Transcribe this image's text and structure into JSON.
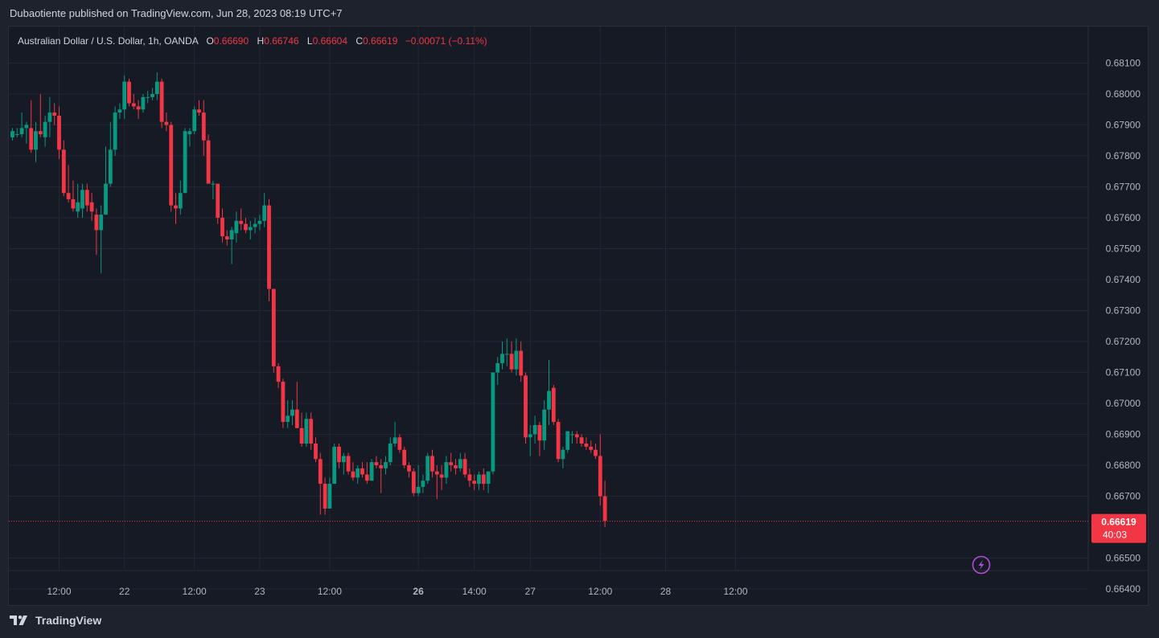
{
  "header": {
    "text": "Dubaotiente published on TradingView.com, Jun 28, 2023 08:19 UTC+7"
  },
  "legend": {
    "title": "Australian Dollar / U.S. Dollar, 1h, OANDA",
    "o_key": "O",
    "o_val": "0.66690",
    "h_key": "H",
    "h_val": "0.66746",
    "l_key": "L",
    "l_val": "0.66604",
    "c_key": "C",
    "c_val": "0.66619",
    "change": "−0.00071 (−0.11%)"
  },
  "footer": {
    "brand": "TradingView",
    "logo_icon": "tradingview-logo-icon"
  },
  "colors": {
    "up": "#089981",
    "down": "#f23645",
    "grid": "#232733",
    "text": "#b2b5be",
    "pane": "#161a25"
  },
  "chart_data": {
    "type": "candlestick",
    "symbol": "AUDUSD",
    "interval": "1h",
    "ylim": [
      0.6638,
      0.6815
    ],
    "y_ticks": [
      {
        "value": 0.681,
        "label": "0.68100"
      },
      {
        "value": 0.68,
        "label": "0.68000"
      },
      {
        "value": 0.679,
        "label": "0.67900"
      },
      {
        "value": 0.678,
        "label": "0.67800"
      },
      {
        "value": 0.677,
        "label": "0.67700"
      },
      {
        "value": 0.676,
        "label": "0.67600"
      },
      {
        "value": 0.675,
        "label": "0.67500"
      },
      {
        "value": 0.674,
        "label": "0.67400"
      },
      {
        "value": 0.673,
        "label": "0.67300"
      },
      {
        "value": 0.672,
        "label": "0.67200"
      },
      {
        "value": 0.671,
        "label": "0.67100"
      },
      {
        "value": 0.67,
        "label": "0.67000"
      },
      {
        "value": 0.669,
        "label": "0.66900"
      },
      {
        "value": 0.668,
        "label": "0.66800"
      },
      {
        "value": 0.667,
        "label": "0.66700"
      },
      {
        "value": 0.665,
        "label": "0.66500"
      },
      {
        "value": 0.664,
        "label": "0.66400"
      }
    ],
    "x_ticks": [
      {
        "index": 10,
        "label": "12:00",
        "bold": false
      },
      {
        "index": 24,
        "label": "22",
        "bold": false
      },
      {
        "index": 39,
        "label": "12:00",
        "bold": false
      },
      {
        "index": 53,
        "label": "23",
        "bold": false
      },
      {
        "index": 68,
        "label": "12:00",
        "bold": false
      },
      {
        "index": 87,
        "label": "26",
        "bold": true
      },
      {
        "index": 99,
        "label": "14:00",
        "bold": false
      },
      {
        "index": 111,
        "label": "27",
        "bold": false
      },
      {
        "index": 126,
        "label": "12:00",
        "bold": false
      },
      {
        "index": 140,
        "label": "28",
        "bold": false
      },
      {
        "index": 155,
        "label": "12:00",
        "bold": false
      }
    ],
    "last_price": {
      "value": 0.66619,
      "label": "0.66619",
      "countdown": "40:03"
    },
    "candles": [
      {
        "o": 0.6786,
        "h": 0.6789,
        "l": 0.6785,
        "c": 0.6788
      },
      {
        "o": 0.6787,
        "h": 0.6789,
        "l": 0.6786,
        "c": 0.6787
      },
      {
        "o": 0.6787,
        "h": 0.6794,
        "l": 0.6786,
        "c": 0.6789
      },
      {
        "o": 0.6789,
        "h": 0.6791,
        "l": 0.6784,
        "c": 0.679
      },
      {
        "o": 0.6789,
        "h": 0.6798,
        "l": 0.6781,
        "c": 0.6782
      },
      {
        "o": 0.6782,
        "h": 0.6791,
        "l": 0.6778,
        "c": 0.6788
      },
      {
        "o": 0.6788,
        "h": 0.68,
        "l": 0.6786,
        "c": 0.6787
      },
      {
        "o": 0.6786,
        "h": 0.6793,
        "l": 0.6783,
        "c": 0.6791
      },
      {
        "o": 0.6791,
        "h": 0.6799,
        "l": 0.6786,
        "c": 0.6794
      },
      {
        "o": 0.6794,
        "h": 0.6797,
        "l": 0.679,
        "c": 0.6793
      },
      {
        "o": 0.6793,
        "h": 0.6796,
        "l": 0.6779,
        "c": 0.6782
      },
      {
        "o": 0.6782,
        "h": 0.6785,
        "l": 0.6767,
        "c": 0.6768
      },
      {
        "o": 0.6768,
        "h": 0.6777,
        "l": 0.6765,
        "c": 0.6766
      },
      {
        "o": 0.6766,
        "h": 0.6772,
        "l": 0.6762,
        "c": 0.6763
      },
      {
        "o": 0.6762,
        "h": 0.6771,
        "l": 0.676,
        "c": 0.6765
      },
      {
        "o": 0.6763,
        "h": 0.6771,
        "l": 0.676,
        "c": 0.6769
      },
      {
        "o": 0.6769,
        "h": 0.6771,
        "l": 0.6762,
        "c": 0.6764
      },
      {
        "o": 0.6765,
        "h": 0.6768,
        "l": 0.6759,
        "c": 0.6762
      },
      {
        "o": 0.6761,
        "h": 0.6763,
        "l": 0.6748,
        "c": 0.6756
      },
      {
        "o": 0.6756,
        "h": 0.6764,
        "l": 0.6742,
        "c": 0.6761
      },
      {
        "o": 0.6761,
        "h": 0.6783,
        "l": 0.6761,
        "c": 0.6771
      },
      {
        "o": 0.6771,
        "h": 0.6791,
        "l": 0.677,
        "c": 0.6782
      },
      {
        "o": 0.6782,
        "h": 0.6796,
        "l": 0.678,
        "c": 0.6794
      },
      {
        "o": 0.6794,
        "h": 0.6797,
        "l": 0.6792,
        "c": 0.6795
      },
      {
        "o": 0.6795,
        "h": 0.6806,
        "l": 0.6792,
        "c": 0.6804
      },
      {
        "o": 0.6804,
        "h": 0.6805,
        "l": 0.6796,
        "c": 0.6797
      },
      {
        "o": 0.6797,
        "h": 0.68,
        "l": 0.6795,
        "c": 0.6796
      },
      {
        "o": 0.6796,
        "h": 0.6798,
        "l": 0.6792,
        "c": 0.6795
      },
      {
        "o": 0.6795,
        "h": 0.68,
        "l": 0.6794,
        "c": 0.6799
      },
      {
        "o": 0.6799,
        "h": 0.6801,
        "l": 0.6797,
        "c": 0.6799
      },
      {
        "o": 0.6799,
        "h": 0.6802,
        "l": 0.6798,
        "c": 0.68
      },
      {
        "o": 0.68,
        "h": 0.6807,
        "l": 0.6798,
        "c": 0.6804
      },
      {
        "o": 0.6804,
        "h": 0.6805,
        "l": 0.6789,
        "c": 0.6791
      },
      {
        "o": 0.6791,
        "h": 0.6794,
        "l": 0.6788,
        "c": 0.679
      },
      {
        "o": 0.679,
        "h": 0.6791,
        "l": 0.6762,
        "c": 0.6764
      },
      {
        "o": 0.6764,
        "h": 0.6768,
        "l": 0.6758,
        "c": 0.6763
      },
      {
        "o": 0.6763,
        "h": 0.6772,
        "l": 0.6761,
        "c": 0.6768
      },
      {
        "o": 0.6768,
        "h": 0.6789,
        "l": 0.6768,
        "c": 0.6788
      },
      {
        "o": 0.6787,
        "h": 0.6789,
        "l": 0.6783,
        "c": 0.6788
      },
      {
        "o": 0.6788,
        "h": 0.6796,
        "l": 0.6787,
        "c": 0.6795
      },
      {
        "o": 0.6795,
        "h": 0.6798,
        "l": 0.6793,
        "c": 0.6794
      },
      {
        "o": 0.6794,
        "h": 0.6798,
        "l": 0.678,
        "c": 0.6785
      },
      {
        "o": 0.6785,
        "h": 0.6787,
        "l": 0.6771,
        "c": 0.6771
      },
      {
        "o": 0.6771,
        "h": 0.6772,
        "l": 0.6766,
        "c": 0.6771
      },
      {
        "o": 0.6771,
        "h": 0.6771,
        "l": 0.6758,
        "c": 0.676
      },
      {
        "o": 0.676,
        "h": 0.6763,
        "l": 0.6752,
        "c": 0.6754
      },
      {
        "o": 0.6754,
        "h": 0.6756,
        "l": 0.6751,
        "c": 0.6753
      },
      {
        "o": 0.6753,
        "h": 0.6757,
        "l": 0.6745,
        "c": 0.6756
      },
      {
        "o": 0.6755,
        "h": 0.6762,
        "l": 0.6752,
        "c": 0.6759
      },
      {
        "o": 0.6759,
        "h": 0.6763,
        "l": 0.6756,
        "c": 0.6758
      },
      {
        "o": 0.6758,
        "h": 0.676,
        "l": 0.6755,
        "c": 0.6756
      },
      {
        "o": 0.6756,
        "h": 0.6759,
        "l": 0.6753,
        "c": 0.6757
      },
      {
        "o": 0.6757,
        "h": 0.676,
        "l": 0.6755,
        "c": 0.6758
      },
      {
        "o": 0.6758,
        "h": 0.6761,
        "l": 0.6756,
        "c": 0.6759
      },
      {
        "o": 0.6759,
        "h": 0.6768,
        "l": 0.6757,
        "c": 0.6764
      },
      {
        "o": 0.6764,
        "h": 0.6766,
        "l": 0.6733,
        "c": 0.6737
      },
      {
        "o": 0.6737,
        "h": 0.6737,
        "l": 0.671,
        "c": 0.6712
      },
      {
        "o": 0.6712,
        "h": 0.6713,
        "l": 0.6705,
        "c": 0.6707
      },
      {
        "o": 0.6707,
        "h": 0.6708,
        "l": 0.6692,
        "c": 0.6694
      },
      {
        "o": 0.6694,
        "h": 0.6701,
        "l": 0.6692,
        "c": 0.6696
      },
      {
        "o": 0.6696,
        "h": 0.6701,
        "l": 0.6693,
        "c": 0.6698
      },
      {
        "o": 0.6698,
        "h": 0.6707,
        "l": 0.6692,
        "c": 0.6692
      },
      {
        "o": 0.6692,
        "h": 0.6697,
        "l": 0.6686,
        "c": 0.6687
      },
      {
        "o": 0.6687,
        "h": 0.6697,
        "l": 0.6686,
        "c": 0.6695
      },
      {
        "o": 0.6695,
        "h": 0.6697,
        "l": 0.6685,
        "c": 0.6687
      },
      {
        "o": 0.6687,
        "h": 0.6689,
        "l": 0.6681,
        "c": 0.6682
      },
      {
        "o": 0.6682,
        "h": 0.6684,
        "l": 0.6664,
        "c": 0.6674
      },
      {
        "o": 0.6674,
        "h": 0.6676,
        "l": 0.6664,
        "c": 0.6666
      },
      {
        "o": 0.6666,
        "h": 0.6676,
        "l": 0.6666,
        "c": 0.6674
      },
      {
        "o": 0.6674,
        "h": 0.6687,
        "l": 0.6674,
        "c": 0.6686
      },
      {
        "o": 0.6686,
        "h": 0.6687,
        "l": 0.6679,
        "c": 0.6681
      },
      {
        "o": 0.6681,
        "h": 0.6684,
        "l": 0.6677,
        "c": 0.6683
      },
      {
        "o": 0.6683,
        "h": 0.6684,
        "l": 0.6677,
        "c": 0.6678
      },
      {
        "o": 0.6678,
        "h": 0.6681,
        "l": 0.6675,
        "c": 0.6676
      },
      {
        "o": 0.6676,
        "h": 0.668,
        "l": 0.6674,
        "c": 0.6679
      },
      {
        "o": 0.6679,
        "h": 0.6681,
        "l": 0.6676,
        "c": 0.6677
      },
      {
        "o": 0.6677,
        "h": 0.6681,
        "l": 0.6674,
        "c": 0.6675
      },
      {
        "o": 0.6675,
        "h": 0.6682,
        "l": 0.6675,
        "c": 0.6681
      },
      {
        "o": 0.6681,
        "h": 0.6683,
        "l": 0.6679,
        "c": 0.668
      },
      {
        "o": 0.668,
        "h": 0.6682,
        "l": 0.6671,
        "c": 0.6679
      },
      {
        "o": 0.6679,
        "h": 0.6683,
        "l": 0.6677,
        "c": 0.6681
      },
      {
        "o": 0.6681,
        "h": 0.6689,
        "l": 0.668,
        "c": 0.6687
      },
      {
        "o": 0.6687,
        "h": 0.6694,
        "l": 0.6686,
        "c": 0.6689
      },
      {
        "o": 0.6689,
        "h": 0.669,
        "l": 0.6684,
        "c": 0.6685
      },
      {
        "o": 0.6685,
        "h": 0.6686,
        "l": 0.6679,
        "c": 0.668
      },
      {
        "o": 0.668,
        "h": 0.6681,
        "l": 0.6676,
        "c": 0.6678
      },
      {
        "o": 0.6678,
        "h": 0.6679,
        "l": 0.667,
        "c": 0.6671
      },
      {
        "o": 0.6671,
        "h": 0.668,
        "l": 0.667,
        "c": 0.6673
      },
      {
        "o": 0.6673,
        "h": 0.6677,
        "l": 0.6671,
        "c": 0.6675
      },
      {
        "o": 0.6675,
        "h": 0.6684,
        "l": 0.6674,
        "c": 0.6683
      },
      {
        "o": 0.6683,
        "h": 0.6685,
        "l": 0.6676,
        "c": 0.6678
      },
      {
        "o": 0.6678,
        "h": 0.668,
        "l": 0.6669,
        "c": 0.6677
      },
      {
        "o": 0.6677,
        "h": 0.668,
        "l": 0.6672,
        "c": 0.6676
      },
      {
        "o": 0.6676,
        "h": 0.6683,
        "l": 0.6674,
        "c": 0.6681
      },
      {
        "o": 0.6681,
        "h": 0.6684,
        "l": 0.6678,
        "c": 0.668
      },
      {
        "o": 0.668,
        "h": 0.6682,
        "l": 0.6677,
        "c": 0.6679
      },
      {
        "o": 0.6679,
        "h": 0.6684,
        "l": 0.6678,
        "c": 0.6682
      },
      {
        "o": 0.6682,
        "h": 0.6684,
        "l": 0.6676,
        "c": 0.6677
      },
      {
        "o": 0.6677,
        "h": 0.6679,
        "l": 0.6673,
        "c": 0.6675
      },
      {
        "o": 0.6675,
        "h": 0.6677,
        "l": 0.6672,
        "c": 0.6674
      },
      {
        "o": 0.6674,
        "h": 0.6678,
        "l": 0.6672,
        "c": 0.6677
      },
      {
        "o": 0.6677,
        "h": 0.6679,
        "l": 0.6672,
        "c": 0.6674
      },
      {
        "o": 0.6674,
        "h": 0.6677,
        "l": 0.6671,
        "c": 0.6678
      },
      {
        "o": 0.6678,
        "h": 0.671,
        "l": 0.6677,
        "c": 0.671
      },
      {
        "o": 0.671,
        "h": 0.6715,
        "l": 0.6706,
        "c": 0.6713
      },
      {
        "o": 0.6713,
        "h": 0.672,
        "l": 0.6711,
        "c": 0.6716
      },
      {
        "o": 0.6716,
        "h": 0.6721,
        "l": 0.6712,
        "c": 0.6716
      },
      {
        "o": 0.6716,
        "h": 0.672,
        "l": 0.671,
        "c": 0.6711
      },
      {
        "o": 0.6711,
        "h": 0.6721,
        "l": 0.6709,
        "c": 0.6717
      },
      {
        "o": 0.6717,
        "h": 0.672,
        "l": 0.6707,
        "c": 0.6709
      },
      {
        "o": 0.6709,
        "h": 0.671,
        "l": 0.6687,
        "c": 0.6689
      },
      {
        "o": 0.6689,
        "h": 0.6693,
        "l": 0.6683,
        "c": 0.669
      },
      {
        "o": 0.669,
        "h": 0.6696,
        "l": 0.6687,
        "c": 0.6693
      },
      {
        "o": 0.6693,
        "h": 0.6694,
        "l": 0.6683,
        "c": 0.6688
      },
      {
        "o": 0.6688,
        "h": 0.6701,
        "l": 0.6685,
        "c": 0.6698
      },
      {
        "o": 0.6698,
        "h": 0.6714,
        "l": 0.6693,
        "c": 0.6704
      },
      {
        "o": 0.6705,
        "h": 0.6706,
        "l": 0.6693,
        "c": 0.6694
      },
      {
        "o": 0.6694,
        "h": 0.6695,
        "l": 0.6681,
        "c": 0.6682
      },
      {
        "o": 0.6682,
        "h": 0.6686,
        "l": 0.6679,
        "c": 0.6685
      },
      {
        "o": 0.6685,
        "h": 0.6691,
        "l": 0.6684,
        "c": 0.6691
      },
      {
        "o": 0.669,
        "h": 0.6691,
        "l": 0.6687,
        "c": 0.669
      },
      {
        "o": 0.669,
        "h": 0.6691,
        "l": 0.6687,
        "c": 0.6689
      },
      {
        "o": 0.6689,
        "h": 0.669,
        "l": 0.6686,
        "c": 0.6687
      },
      {
        "o": 0.6687,
        "h": 0.6689,
        "l": 0.6685,
        "c": 0.6686
      },
      {
        "o": 0.6686,
        "h": 0.6688,
        "l": 0.6684,
        "c": 0.6685
      },
      {
        "o": 0.6685,
        "h": 0.6687,
        "l": 0.6682,
        "c": 0.6683
      },
      {
        "o": 0.6683,
        "h": 0.669,
        "l": 0.6667,
        "c": 0.667
      },
      {
        "o": 0.667,
        "h": 0.6675,
        "l": 0.666,
        "c": 0.6662
      }
    ]
  }
}
